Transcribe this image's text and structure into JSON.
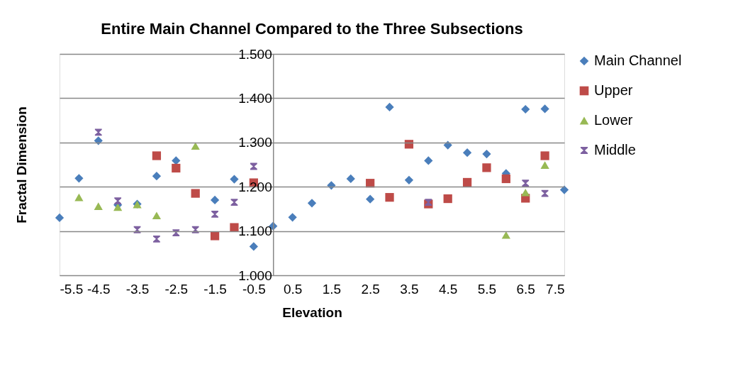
{
  "chart_data": {
    "type": "scatter",
    "title": "Entire Main Channel Compared to the Three Subsections",
    "xlabel": "Elevation",
    "ylabel": "Fractal Dimension",
    "x": [
      -5.5,
      -5,
      -4.5,
      -4,
      -3.5,
      -3,
      -2.5,
      -2,
      -1.5,
      -1,
      -0.5,
      0,
      0.5,
      1,
      1.5,
      2,
      2.5,
      3,
      3.5,
      4,
      4.5,
      5,
      5.5,
      6,
      6.5,
      7,
      7.5
    ],
    "series": [
      {
        "name": "Main Channel",
        "color": "#4a7ebb",
        "marker": "diamond",
        "values": [
          1.13,
          1.219,
          1.304,
          1.159,
          1.161,
          1.224,
          1.259,
          null,
          1.17,
          1.217,
          1.065,
          1.111,
          1.131,
          1.163,
          1.203,
          1.218,
          1.172,
          1.38,
          1.215,
          1.259,
          1.294,
          1.277,
          1.274,
          1.23,
          1.375,
          1.376,
          1.193
        ]
      },
      {
        "name": "Upper",
        "color": "#be4b48",
        "marker": "square",
        "values": [
          null,
          null,
          null,
          null,
          null,
          1.27,
          1.242,
          1.185,
          1.089,
          1.108,
          1.209,
          null,
          null,
          null,
          null,
          null,
          1.208,
          1.176,
          1.296,
          1.161,
          1.173,
          1.21,
          1.243,
          1.218,
          1.174,
          1.27,
          null
        ]
      },
      {
        "name": "Lower",
        "color": "#98b954",
        "marker": "triangle",
        "values": [
          null,
          1.176,
          1.156,
          1.154,
          1.16,
          1.135,
          null,
          1.292,
          null,
          null,
          null,
          null,
          null,
          null,
          null,
          null,
          null,
          null,
          null,
          null,
          null,
          null,
          null,
          1.091,
          1.187,
          1.249,
          null
        ]
      },
      {
        "name": "Middle",
        "color": "#7d60a0",
        "marker": "star",
        "values": [
          null,
          null,
          1.323,
          1.168,
          1.103,
          1.082,
          1.096,
          1.103,
          1.138,
          1.165,
          1.246,
          null,
          null,
          null,
          null,
          null,
          null,
          null,
          null,
          1.165,
          null,
          null,
          null,
          null,
          1.208,
          1.185,
          null
        ]
      }
    ],
    "xlim": [
      -5.5,
      7.5
    ],
    "xticks": [
      -5.5,
      -4.5,
      -3.5,
      -2.5,
      -1.5,
      -0.5,
      0.5,
      1.5,
      2.5,
      3.5,
      4.5,
      5.5,
      6.5,
      7.5
    ],
    "ylim": [
      1.0,
      1.5
    ],
    "yticks": [
      {
        "value": 1.0,
        "label": "1.000"
      },
      {
        "value": 1.1,
        "label": "1.100"
      },
      {
        "value": 1.2,
        "label": "1.200"
      },
      {
        "value": 1.3,
        "label": "1.300"
      },
      {
        "value": 1.4,
        "label": "1.400"
      },
      {
        "value": 1.5,
        "label": "1.500"
      }
    ],
    "grid": "y",
    "legend": "right"
  }
}
